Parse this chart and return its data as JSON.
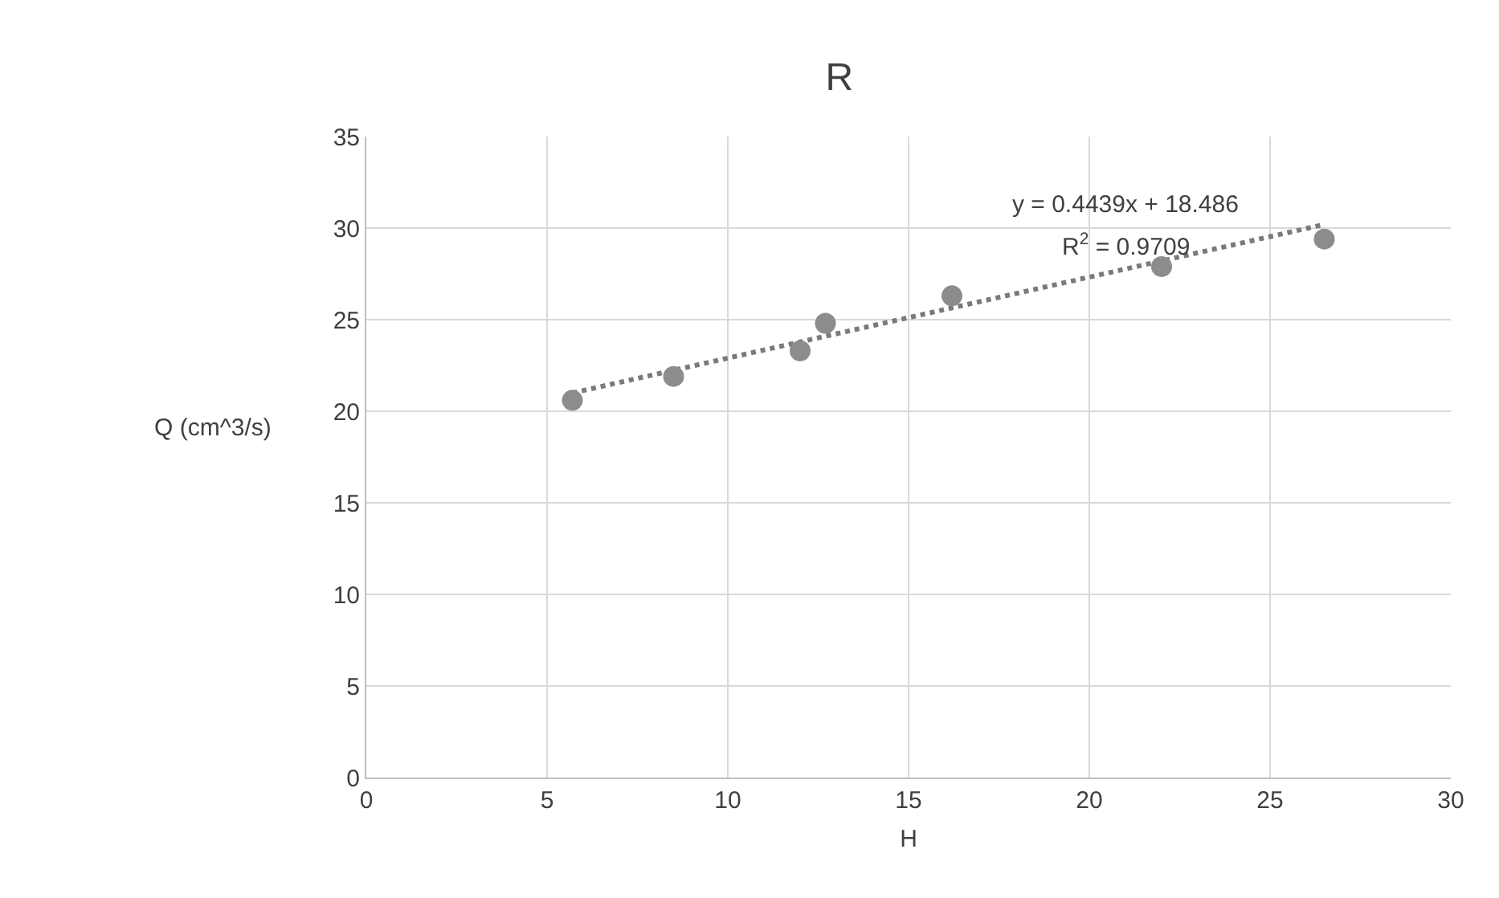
{
  "chart_data": {
    "type": "scatter",
    "title": "R",
    "xlabel": "H",
    "ylabel": "Q (cm^3/s)",
    "xlim": [
      0,
      30
    ],
    "xticks": [
      0,
      5,
      10,
      15,
      20,
      25,
      30
    ],
    "ylim": [
      0,
      35
    ],
    "yticks": [
      0,
      5,
      10,
      15,
      20,
      25,
      30,
      35
    ],
    "grid": true,
    "marker": "circle",
    "series": [
      {
        "color": "#8c8c8c",
        "x": [
          5.7,
          8.5,
          12.0,
          12.7,
          16.2,
          22.0,
          26.5
        ],
        "values": [
          20.6,
          21.9,
          23.3,
          24.8,
          26.3,
          27.9,
          29.4
        ]
      },
      {
        "type": "line",
        "color": "#7a7a7a",
        "line_style": "dotted",
        "marker": "none",
        "x": [
          5.7,
          26.5
        ],
        "values": [
          21.0,
          30.2
        ]
      }
    ],
    "annotations": [
      "y = 0.4439x + 18.486",
      "R$^{2}$ = 0.9709"
    ]
  }
}
